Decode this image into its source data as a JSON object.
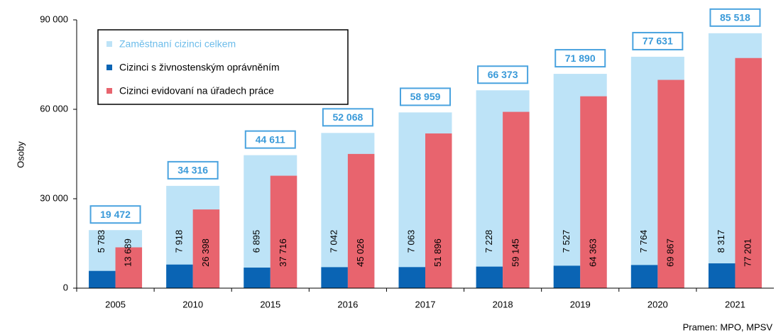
{
  "chart_data": {
    "type": "bar",
    "y_label": "Osoby",
    "source": "Pramen: MPO, MPSV",
    "categories": [
      "2005",
      "2010",
      "2015",
      "2016",
      "2017",
      "2018",
      "2019",
      "2020",
      "2021"
    ],
    "series": [
      {
        "name": "Zaměstnaní cizinci celkem",
        "color": "#bde3f7",
        "values": [
          19472,
          34316,
          44611,
          52068,
          58959,
          66373,
          71890,
          77631,
          85518
        ],
        "value_labels": [
          "19 472",
          "34 316",
          "44 611",
          "52 068",
          "58 959",
          "66 373",
          "71 890",
          "77 631",
          "85 518"
        ]
      },
      {
        "name": "Cizinci s živnostenským oprávněním",
        "color": "#0a64b4",
        "values": [
          5783,
          7918,
          6895,
          7042,
          7063,
          7228,
          7527,
          7764,
          8317
        ],
        "value_labels": [
          "5 783",
          "7 918",
          "6 895",
          "7 042",
          "7 063",
          "7 228",
          "7 527",
          "7 764",
          "8 317"
        ]
      },
      {
        "name": "Cizinci evidovaní na úřadech práce",
        "color": "#e8646e",
        "values": [
          13689,
          26398,
          37716,
          45026,
          51896,
          59145,
          64363,
          69867,
          77201
        ],
        "value_labels": [
          "13 689",
          "26 398",
          "37 716",
          "45 026",
          "51 896",
          "59 145",
          "64 363",
          "69 867",
          "77 201"
        ]
      }
    ],
    "ylim": [
      0,
      90000
    ],
    "yticks": [
      0,
      {
        "value": 30000,
        "label": "30 000"
      },
      {
        "value": 60000,
        "label": "60 000"
      },
      {
        "value": 90000,
        "label": "90 000"
      }
    ],
    "grid": false,
    "legend": "top-left"
  }
}
